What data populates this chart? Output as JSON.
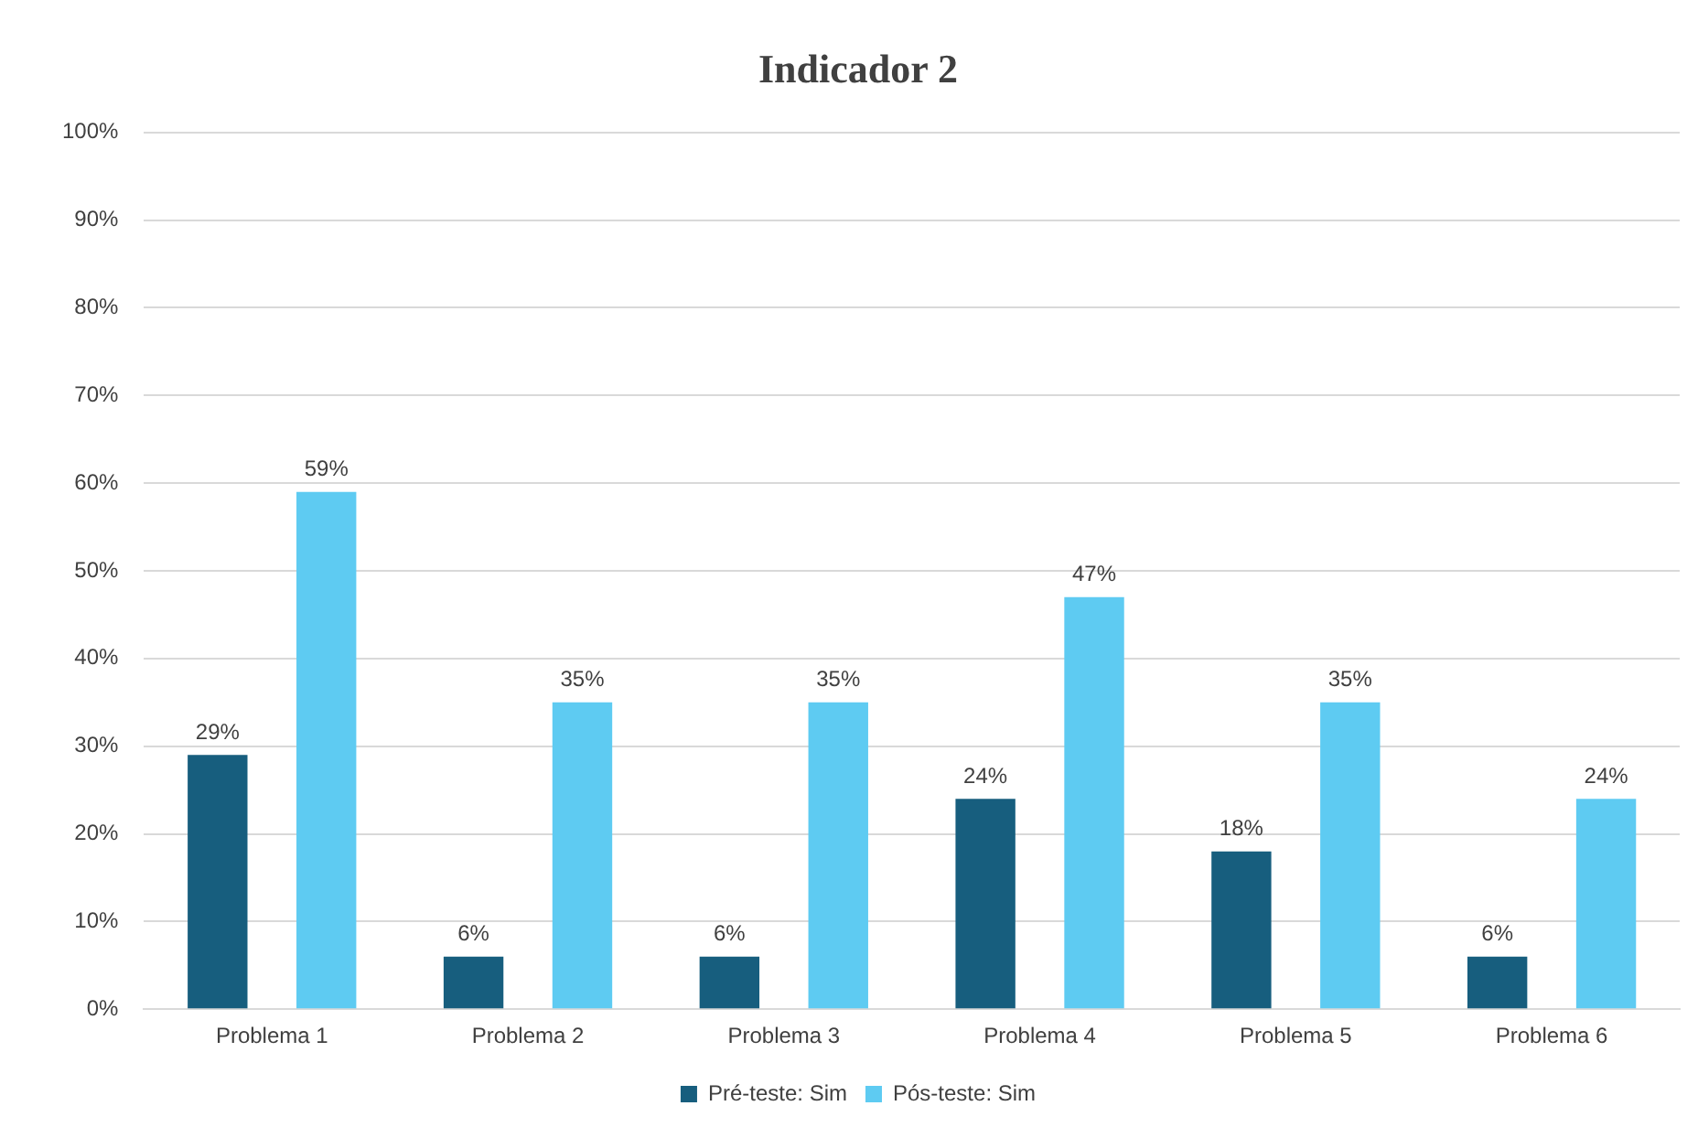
{
  "chart_data": {
    "type": "bar",
    "title": "Indicador 2",
    "categories": [
      "Problema 1",
      "Problema 2",
      "Problema 3",
      "Problema 4",
      "Problema 5",
      "Problema 6"
    ],
    "series": [
      {
        "name": "Pré-teste: Sim",
        "color": "#175e7e",
        "values": [
          29,
          6,
          6,
          24,
          18,
          6
        ],
        "value_labels": [
          "29%",
          "6%",
          "6%",
          "24%",
          "18%",
          "6%"
        ]
      },
      {
        "name": "Pós-teste: Sim",
        "color": "#5ecbf2",
        "values": [
          59,
          35,
          35,
          47,
          35,
          24
        ],
        "value_labels": [
          "59%",
          "35%",
          "35%",
          "47%",
          "35%",
          "24%"
        ]
      }
    ],
    "ylim": [
      0,
      100
    ],
    "yticks": [
      {
        "value": 0,
        "label": "0%"
      },
      {
        "value": 10,
        "label": "10%"
      },
      {
        "value": 20,
        "label": "20%"
      },
      {
        "value": 30,
        "label": "30%"
      },
      {
        "value": 40,
        "label": "40%"
      },
      {
        "value": 50,
        "label": "50%"
      },
      {
        "value": 60,
        "label": "60%"
      },
      {
        "value": 70,
        "label": "70%"
      },
      {
        "value": 80,
        "label": "80%"
      },
      {
        "value": 90,
        "label": "90%"
      },
      {
        "value": 100,
        "label": "100%"
      }
    ],
    "grid": "y",
    "legend": "bottom"
  }
}
